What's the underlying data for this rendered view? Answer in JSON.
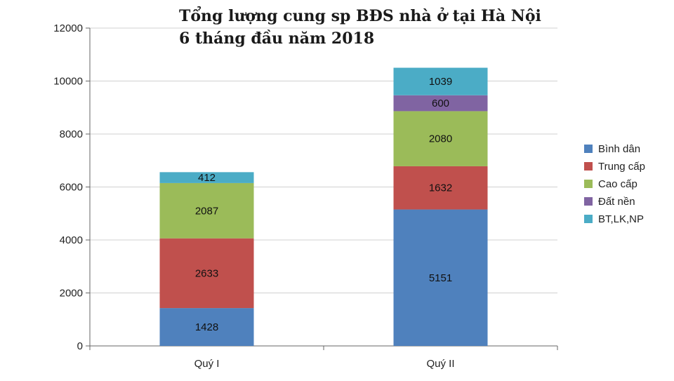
{
  "chart_data": {
    "type": "bar",
    "stacked": true,
    "title": [
      "Tổng lượng cung sp BĐS nhà ở tại Hà Nội",
      "6 tháng đầu năm 2018"
    ],
    "categories": [
      "Quý I",
      "Quý II"
    ],
    "series": [
      {
        "name": "Bình dân",
        "color": "#4f81bd",
        "values": [
          1428,
          5151
        ]
      },
      {
        "name": "Trung cấp",
        "color": "#c0504d",
        "values": [
          2633,
          1632
        ]
      },
      {
        "name": "Cao cấp",
        "color": "#9bbb59",
        "values": [
          2087,
          2080
        ]
      },
      {
        "name": "Đất nền",
        "color": "#8064a2",
        "values": [
          0,
          600
        ]
      },
      {
        "name": "BT,LK,NP",
        "color": "#4bacc6",
        "values": [
          412,
          1039
        ]
      }
    ],
    "data_labels": [
      [
        "1428",
        "5151"
      ],
      [
        "2633",
        "1632"
      ],
      [
        "2087",
        "2080"
      ],
      [
        null,
        "600"
      ],
      [
        "412",
        "1039"
      ]
    ],
    "ylim": [
      0,
      12000
    ],
    "yticks": [
      0,
      2000,
      4000,
      6000,
      8000,
      10000,
      12000
    ],
    "grid": true,
    "legend": "right"
  }
}
